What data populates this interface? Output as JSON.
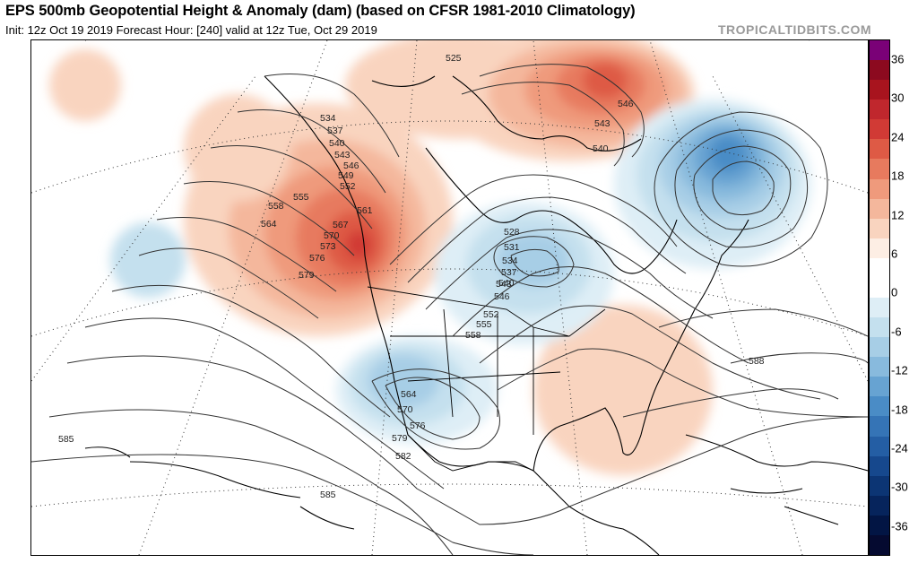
{
  "header": {
    "title": "EPS 500mb Geopotential Height & Anomaly (dam) (based on CFSR 1981-2010 Climatology)",
    "subtitle": "Init: 12z Oct 19 2019   Forecast Hour: [240]   valid at 12z Tue, Oct 29 2019",
    "brand": "TROPICALTIDBITS.COM"
  },
  "colorbar": {
    "labels": [
      "36",
      "30",
      "24",
      "18",
      "12",
      "6",
      "0",
      "-6",
      "-12",
      "-18",
      "-24",
      "-30",
      "-36"
    ],
    "colors": [
      "#7a0177",
      "#8c0a1f",
      "#a8141e",
      "#c0272d",
      "#d13a35",
      "#de5a45",
      "#e77a5e",
      "#ef9a7c",
      "#f4b79c",
      "#f9d4bf",
      "#fdeee4",
      "#ffffff",
      "#ffffff",
      "#deeef6",
      "#c4e0ee",
      "#a7cee6",
      "#88badd",
      "#67a3d2",
      "#4a8cc6",
      "#3574b6",
      "#245ea4",
      "#16488d",
      "#0c3574",
      "#06245c",
      "#021544",
      "#050a30"
    ]
  },
  "contour_labels": [
    "525",
    "534",
    "537",
    "540",
    "543",
    "546",
    "549",
    "552",
    "555",
    "558",
    "561",
    "564",
    "567",
    "570",
    "573",
    "576",
    "579",
    "528",
    "531",
    "534",
    "537",
    "540",
    "543",
    "546",
    "552",
    "555",
    "558",
    "564",
    "570",
    "576",
    "579",
    "582",
    "585",
    "585",
    "588",
    "540",
    "543",
    "546"
  ]
}
